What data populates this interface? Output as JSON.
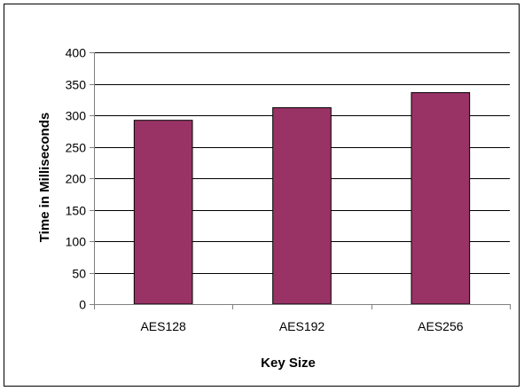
{
  "chart_data": {
    "type": "bar",
    "title": "",
    "xlabel": "Key Size",
    "ylabel": "Time in Milliseconds",
    "categories": [
      "AES128",
      "AES192",
      "AES256"
    ],
    "values": [
      292,
      312,
      336
    ],
    "ylim": [
      0,
      400
    ],
    "yticks": [
      0,
      50,
      100,
      150,
      200,
      250,
      300,
      350,
      400
    ],
    "grid": true,
    "legend": "none",
    "colors": {
      "bar": "#993366",
      "bar_border": "#000000",
      "grid": "#000000",
      "axis": "#808080"
    }
  }
}
